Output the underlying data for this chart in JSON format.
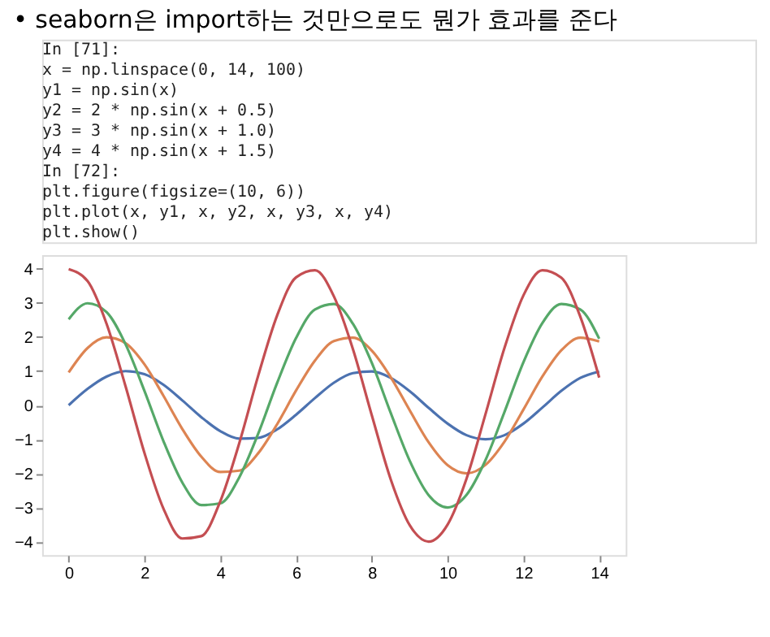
{
  "chart_data": {
    "type": "line",
    "title": "• seaborn은 import하는 것만으로도 뭔가 효과를 준다",
    "annotations": [
      "In [71]:",
      "x = np.linspace(0, 14, 100)",
      "y1 = np.sin(x)",
      "y2 = 2 * np.sin(x + 0.5)",
      "y3 = 3 * np.sin(x + 1.0)",
      "y4 = 4 * np.sin(x + 1.5)",
      "In [72]:",
      "plt.figure(figsize=(10, 6))",
      "plt.plot(x, y1, x, y2, x, y3, x, y4)",
      "plt.show()"
    ],
    "x": [
      0,
      0.5,
      1,
      1.5,
      2,
      2.5,
      3,
      3.5,
      4,
      4.5,
      5,
      5.5,
      6,
      6.5,
      7,
      7.5,
      8,
      8.5,
      9,
      9.5,
      10,
      10.5,
      11,
      11.5,
      12,
      12.5,
      13,
      13.5,
      14
    ],
    "series": [
      {
        "color": "#4c72b0",
        "values": [
          0,
          0.48,
          0.84,
          1.0,
          0.91,
          0.6,
          0.14,
          -0.35,
          -0.76,
          -0.98,
          -0.96,
          -0.71,
          -0.28,
          0.21,
          0.66,
          0.94,
          0.99,
          0.8,
          0.41,
          -0.08,
          -0.54,
          -0.88,
          -1.0,
          -0.88,
          -0.54,
          -0.07,
          0.42,
          0.8,
          0.99
        ]
      },
      {
        "color": "#dd8452",
        "values": [
          0.96,
          1.68,
          1.99,
          1.82,
          1.2,
          0.28,
          -0.7,
          -1.51,
          -1.96,
          -1.92,
          -1.41,
          -0.56,
          0.43,
          1.31,
          1.88,
          1.98,
          1.6,
          0.82,
          -0.15,
          -1.09,
          -1.76,
          -2.0,
          -1.75,
          -1.07,
          -0.13,
          0.84,
          1.61,
          1.98,
          1.87
        ]
      },
      {
        "color": "#55a868",
        "values": [
          2.52,
          2.99,
          2.73,
          1.79,
          0.42,
          -1.05,
          -2.27,
          -2.93,
          -2.88,
          -2.12,
          -0.84,
          0.65,
          1.97,
          2.81,
          2.97,
          2.39,
          1.24,
          -0.23,
          -1.63,
          -2.64,
          -3.0,
          -2.63,
          -1.61,
          -0.2,
          1.26,
          2.41,
          2.97,
          2.81,
          1.95
        ]
      },
      {
        "color": "#c44e52",
        "values": [
          3.99,
          3.64,
          2.39,
          0.56,
          -1.4,
          -3.03,
          -3.91,
          -3.84,
          -2.82,
          -1.12,
          0.86,
          2.63,
          3.75,
          3.96,
          3.19,
          1.65,
          -0.3,
          -2.18,
          -3.52,
          -4.0,
          -3.5,
          -2.15,
          -0.26,
          1.68,
          3.22,
          3.96,
          3.74,
          2.6,
          0.81
        ]
      }
    ],
    "xlim": [
      -0.7,
      14.7
    ],
    "xticks": [
      0,
      2,
      4,
      6,
      8,
      10,
      12,
      14
    ],
    "ylim": [
      -4.4,
      4.4
    ],
    "yticks": [
      -4,
      -3,
      -2,
      -1,
      0,
      1,
      2,
      3,
      4
    ],
    "grid": false,
    "legend": false,
    "marker": "none",
    "line_style": "solid"
  }
}
